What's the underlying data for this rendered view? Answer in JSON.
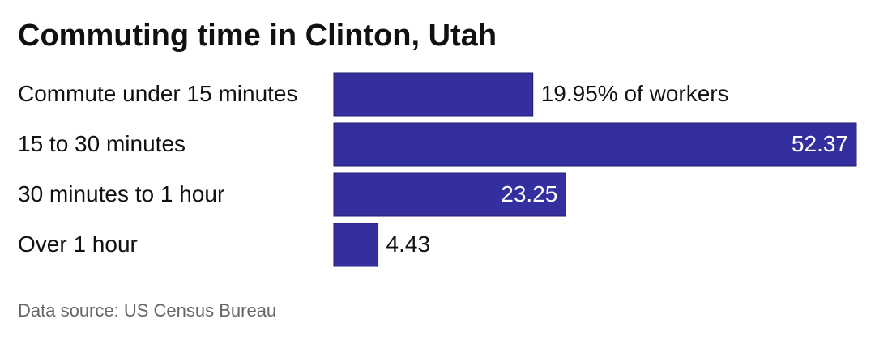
{
  "chart_data": {
    "type": "bar",
    "orientation": "horizontal",
    "title": "Commuting time in Clinton, Utah",
    "categories": [
      "Commute under 15 minutes",
      "15 to 30 minutes",
      "30 minutes to 1 hour",
      "Over 1 hour"
    ],
    "values": [
      19.95,
      52.37,
      23.25,
      4.43
    ],
    "value_labels": [
      "19.95% of workers",
      "52.37",
      "23.25",
      "4.43"
    ],
    "color": "#332f9f",
    "source": "Data source: US Census Bureau"
  }
}
